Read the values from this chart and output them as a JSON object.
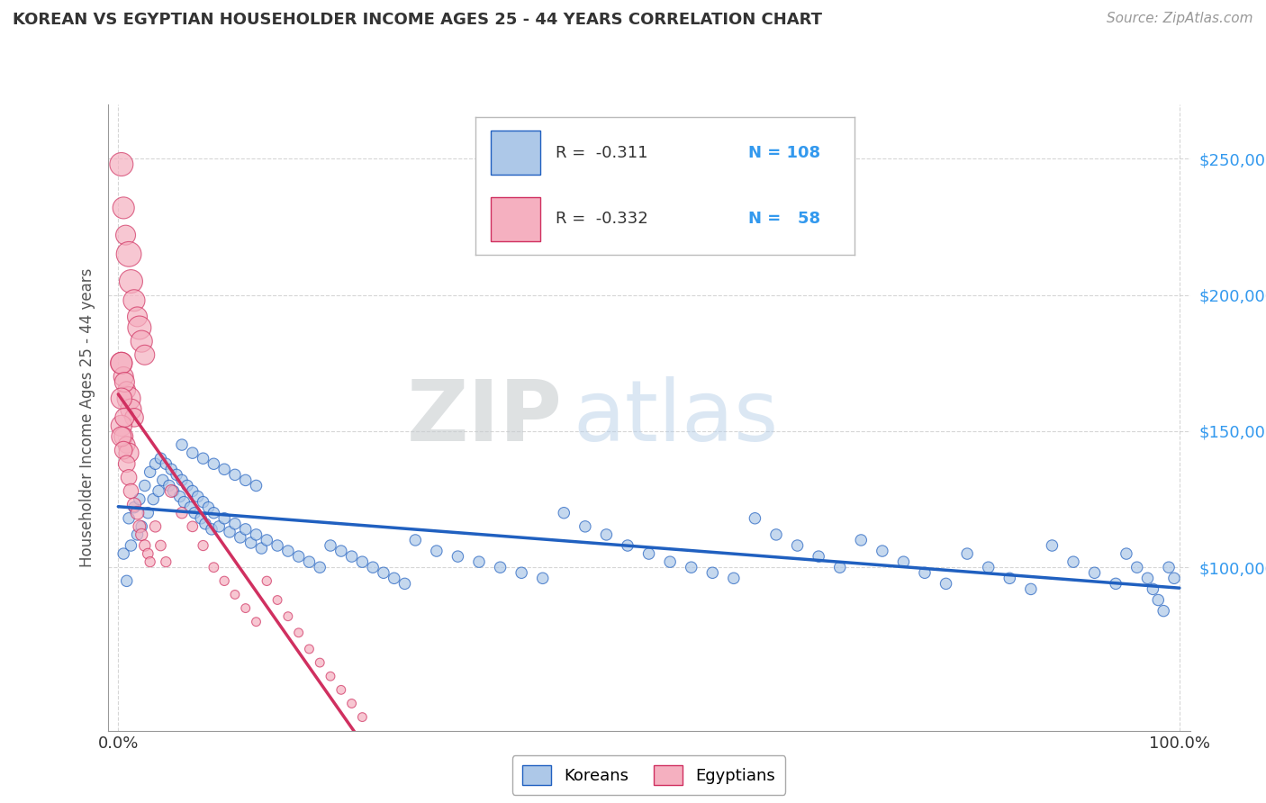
{
  "title": "KOREAN VS EGYPTIAN HOUSEHOLDER INCOME AGES 25 - 44 YEARS CORRELATION CHART",
  "source": "Source: ZipAtlas.com",
  "ylabel": "Householder Income Ages 25 - 44 years",
  "x_tick_labels": [
    "0.0%",
    "100.0%"
  ],
  "y_tick_labels": [
    "$100,000",
    "$150,000",
    "$200,000",
    "$250,000"
  ],
  "y_tick_values": [
    100000,
    150000,
    200000,
    250000
  ],
  "watermark_zip": "ZIP",
  "watermark_atlas": "atlas",
  "korean_color": "#adc8e8",
  "egyptian_color": "#f5b0c0",
  "korean_line_color": "#2060c0",
  "egyptian_line_color": "#d03060",
  "legend_korean_label": "Koreans",
  "legend_egyptian_label": "Egyptians",
  "r_korean": -0.311,
  "n_korean": 108,
  "r_egyptian": -0.332,
  "n_egyptian": 58,
  "korean_x": [
    0.005,
    0.008,
    0.01,
    0.012,
    0.015,
    0.018,
    0.02,
    0.022,
    0.025,
    0.028,
    0.03,
    0.033,
    0.035,
    0.038,
    0.04,
    0.042,
    0.045,
    0.048,
    0.05,
    0.052,
    0.055,
    0.058,
    0.06,
    0.062,
    0.065,
    0.068,
    0.07,
    0.072,
    0.075,
    0.078,
    0.08,
    0.082,
    0.085,
    0.088,
    0.09,
    0.095,
    0.1,
    0.105,
    0.11,
    0.115,
    0.12,
    0.125,
    0.13,
    0.135,
    0.14,
    0.15,
    0.16,
    0.17,
    0.18,
    0.19,
    0.2,
    0.21,
    0.22,
    0.23,
    0.24,
    0.25,
    0.26,
    0.27,
    0.28,
    0.3,
    0.32,
    0.34,
    0.36,
    0.38,
    0.4,
    0.42,
    0.44,
    0.46,
    0.48,
    0.5,
    0.52,
    0.54,
    0.56,
    0.58,
    0.6,
    0.62,
    0.64,
    0.66,
    0.68,
    0.7,
    0.72,
    0.74,
    0.76,
    0.78,
    0.8,
    0.82,
    0.84,
    0.86,
    0.88,
    0.9,
    0.92,
    0.94,
    0.95,
    0.96,
    0.97,
    0.975,
    0.98,
    0.985,
    0.99,
    0.995,
    0.06,
    0.07,
    0.08,
    0.09,
    0.1,
    0.11,
    0.12,
    0.13
  ],
  "korean_y": [
    105000,
    95000,
    118000,
    108000,
    122000,
    112000,
    125000,
    115000,
    130000,
    120000,
    135000,
    125000,
    138000,
    128000,
    140000,
    132000,
    138000,
    130000,
    136000,
    128000,
    134000,
    126000,
    132000,
    124000,
    130000,
    122000,
    128000,
    120000,
    126000,
    118000,
    124000,
    116000,
    122000,
    114000,
    120000,
    115000,
    118000,
    113000,
    116000,
    111000,
    114000,
    109000,
    112000,
    107000,
    110000,
    108000,
    106000,
    104000,
    102000,
    100000,
    108000,
    106000,
    104000,
    102000,
    100000,
    98000,
    96000,
    94000,
    110000,
    106000,
    104000,
    102000,
    100000,
    98000,
    96000,
    120000,
    115000,
    112000,
    108000,
    105000,
    102000,
    100000,
    98000,
    96000,
    118000,
    112000,
    108000,
    104000,
    100000,
    110000,
    106000,
    102000,
    98000,
    94000,
    105000,
    100000,
    96000,
    92000,
    108000,
    102000,
    98000,
    94000,
    105000,
    100000,
    96000,
    92000,
    88000,
    84000,
    100000,
    96000,
    145000,
    142000,
    140000,
    138000,
    136000,
    134000,
    132000,
    130000
  ],
  "korean_sizes": [
    80,
    80,
    80,
    80,
    80,
    80,
    80,
    80,
    80,
    80,
    80,
    80,
    80,
    80,
    80,
    80,
    80,
    80,
    80,
    80,
    80,
    80,
    80,
    80,
    80,
    80,
    80,
    80,
    80,
    80,
    80,
    80,
    80,
    80,
    80,
    80,
    80,
    80,
    80,
    80,
    80,
    80,
    80,
    80,
    80,
    80,
    80,
    80,
    80,
    80,
    80,
    80,
    80,
    80,
    80,
    80,
    80,
    80,
    80,
    80,
    80,
    80,
    80,
    80,
    80,
    80,
    80,
    80,
    80,
    80,
    80,
    80,
    80,
    80,
    80,
    80,
    80,
    80,
    80,
    80,
    80,
    80,
    80,
    80,
    80,
    80,
    80,
    80,
    80,
    80,
    80,
    80,
    80,
    80,
    80,
    80,
    80,
    80,
    80,
    80,
    80,
    80,
    80,
    80,
    80,
    80,
    80,
    80
  ],
  "egyptian_x": [
    0.003,
    0.005,
    0.007,
    0.01,
    0.012,
    0.015,
    0.018,
    0.02,
    0.022,
    0.025,
    0.003,
    0.005,
    0.008,
    0.01,
    0.012,
    0.015,
    0.003,
    0.005,
    0.008,
    0.01,
    0.003,
    0.006,
    0.003,
    0.006,
    0.003,
    0.005,
    0.008,
    0.01,
    0.012,
    0.015,
    0.018,
    0.02,
    0.022,
    0.025,
    0.028,
    0.03,
    0.035,
    0.04,
    0.045,
    0.05,
    0.06,
    0.07,
    0.08,
    0.09,
    0.1,
    0.11,
    0.12,
    0.13,
    0.14,
    0.15,
    0.16,
    0.17,
    0.18,
    0.19,
    0.2,
    0.21,
    0.22,
    0.23
  ],
  "egyptian_y": [
    248000,
    232000,
    222000,
    215000,
    205000,
    198000,
    192000,
    188000,
    183000,
    178000,
    175000,
    170000,
    165000,
    162000,
    158000,
    155000,
    152000,
    148000,
    145000,
    142000,
    175000,
    168000,
    162000,
    155000,
    148000,
    143000,
    138000,
    133000,
    128000,
    123000,
    120000,
    115000,
    112000,
    108000,
    105000,
    102000,
    115000,
    108000,
    102000,
    128000,
    120000,
    115000,
    108000,
    100000,
    95000,
    90000,
    85000,
    80000,
    95000,
    88000,
    82000,
    76000,
    70000,
    65000,
    60000,
    55000,
    50000,
    45000
  ],
  "egyptian_sizes": [
    350,
    300,
    250,
    400,
    350,
    300,
    250,
    350,
    300,
    250,
    300,
    250,
    200,
    350,
    280,
    220,
    280,
    230,
    180,
    250,
    300,
    250,
    280,
    230,
    250,
    200,
    180,
    160,
    140,
    120,
    110,
    100,
    90,
    80,
    70,
    65,
    80,
    70,
    65,
    100,
    80,
    70,
    65,
    60,
    55,
    50,
    50,
    50,
    55,
    50,
    50,
    50,
    50,
    50,
    50,
    50,
    50,
    50
  ]
}
